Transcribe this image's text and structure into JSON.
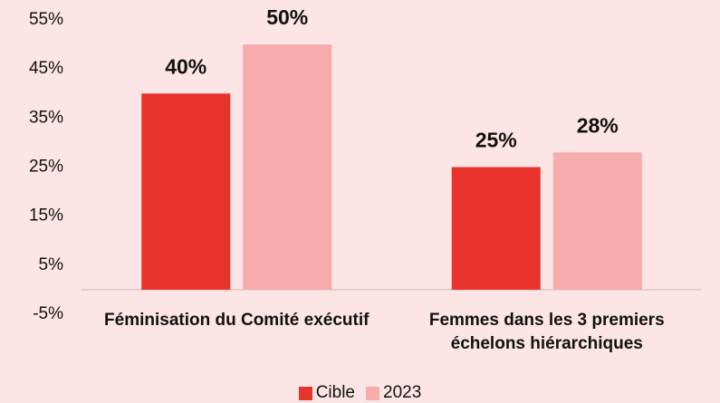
{
  "chart_data": {
    "type": "bar",
    "categories": [
      "Féminisation du Comité exécutif",
      "Femmes dans les 3 premiers échelons hiérarchiques"
    ],
    "series": [
      {
        "name": "Cible",
        "color": "#e8332b",
        "values": [
          40,
          25
        ],
        "value_labels": [
          "40%",
          "25%"
        ]
      },
      {
        "name": "2023",
        "color": "#f5acab",
        "values": [
          50,
          28
        ],
        "value_labels": [
          "50%",
          "28%"
        ]
      }
    ],
    "ylim": [
      -5,
      55
    ],
    "yticks": [
      {
        "value": -5,
        "label": "-5%"
      },
      {
        "value": 5,
        "label": "5%"
      },
      {
        "value": 15,
        "label": "15%"
      },
      {
        "value": 25,
        "label": "25%"
      },
      {
        "value": 35,
        "label": "35%"
      },
      {
        "value": 45,
        "label": "45%"
      },
      {
        "value": 55,
        "label": "55%"
      }
    ],
    "grid": false,
    "legend": "bottom"
  }
}
